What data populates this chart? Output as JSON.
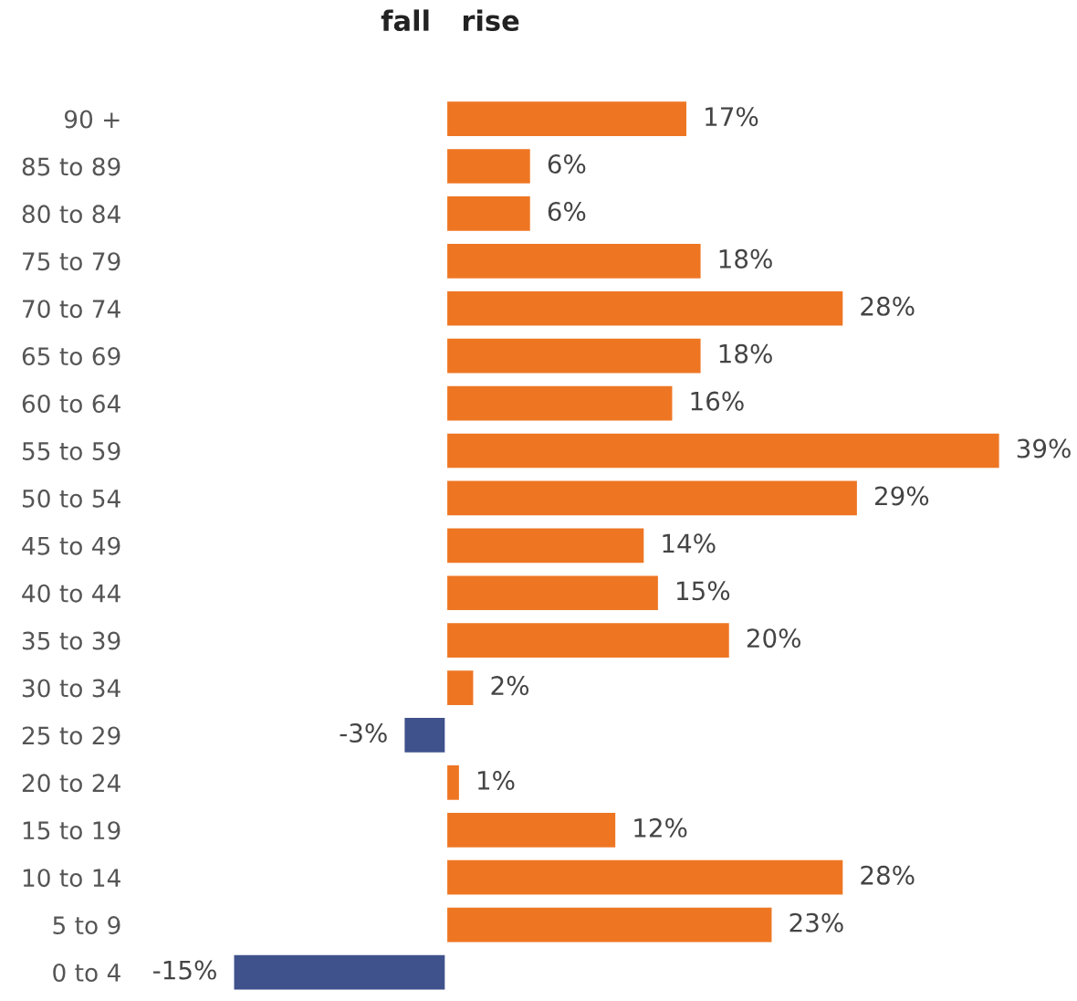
{
  "chart_data": {
    "type": "bar",
    "orientation": "horizontal",
    "categories": [
      "90 +",
      "85 to 89",
      "80 to 84",
      "75 to 79",
      "70 to 74",
      "65 to 69",
      "60 to 64",
      "55 to 59",
      "50 to 54",
      "45 to 49",
      "40 to 44",
      "35 to 39",
      "30 to 34",
      "25 to 29",
      "20 to 24",
      "15 to 19",
      "10 to 14",
      "5 to 9",
      "0 to 4"
    ],
    "values": [
      17,
      6,
      6,
      18,
      28,
      18,
      16,
      39,
      29,
      14,
      15,
      20,
      2,
      -3,
      1,
      12,
      28,
      23,
      -15
    ],
    "value_labels": [
      "17%",
      "6%",
      "6%",
      "18%",
      "28%",
      "18%",
      "16%",
      "39%",
      "29%",
      "14%",
      "15%",
      "20%",
      "2%",
      "-3%",
      "1%",
      "12%",
      "28%",
      "23%",
      "-15%"
    ],
    "colors": [
      "#ee7623",
      "#ee7623",
      "#ee7623",
      "#ee7623",
      "#ee7623",
      "#ee7623",
      "#ee7623",
      "#ee7623",
      "#ee7623",
      "#ee7623",
      "#ee7623",
      "#ee7623",
      "#ee7623",
      "#3f528c",
      "#ee7623",
      "#ee7623",
      "#ee7623",
      "#ee7623",
      "#3f528c"
    ],
    "annotations": [
      "fall",
      "rise"
    ],
    "legend": false,
    "grid": false
  }
}
